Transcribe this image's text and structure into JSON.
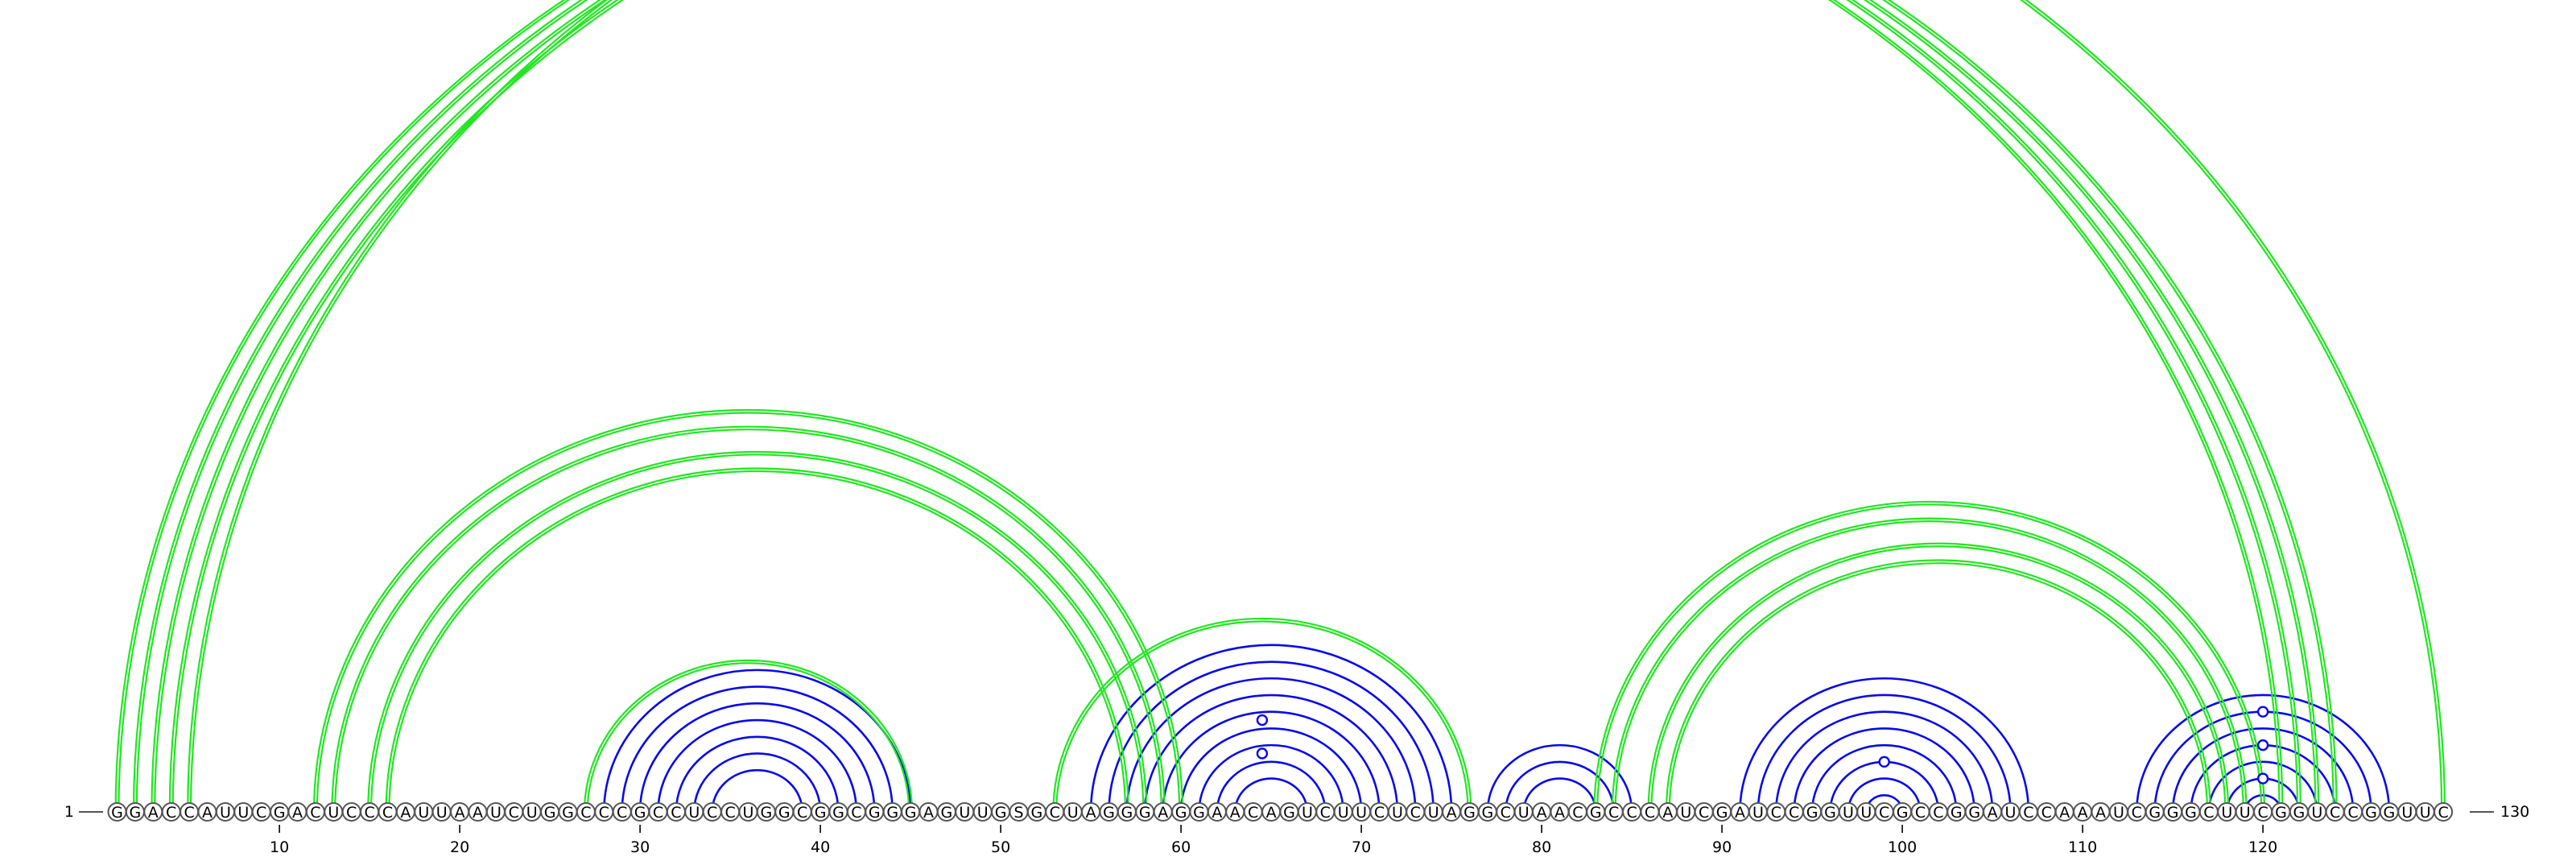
{
  "diagram": {
    "type": "rna-arc-diagram",
    "sequence": "GGACCAUUCGACUCCCAUUAAUCUGGCCCGCCUCCUGGCGGCGGGAGUUGSGCUAGGGAGGAACAGUCUUCUCUAGGCUAACGCCCAUCGAUCCGGUUCGCCGGAUCCAAAUCGGGCUUCGGUCCGGUUC",
    "start_label": "1",
    "end_label": "130",
    "tick_labels": [
      {
        "pos": 10,
        "label": "10"
      },
      {
        "pos": 20,
        "label": "20"
      },
      {
        "pos": 30,
        "label": "30"
      },
      {
        "pos": 40,
        "label": "40"
      },
      {
        "pos": 50,
        "label": "50"
      },
      {
        "pos": 60,
        "label": "60"
      },
      {
        "pos": 70,
        "label": "70"
      },
      {
        "pos": 80,
        "label": "80"
      },
      {
        "pos": 90,
        "label": "90"
      },
      {
        "pos": 100,
        "label": "100"
      },
      {
        "pos": 110,
        "label": "110"
      },
      {
        "pos": 120,
        "label": "120"
      }
    ],
    "colors": {
      "green": "#22e622",
      "blue": "#0a0ae6",
      "circle_stroke": "#555555"
    },
    "blue_pairs": [
      [
        28,
        45
      ],
      [
        29,
        44
      ],
      [
        30,
        43
      ],
      [
        31,
        42
      ],
      [
        32,
        41
      ],
      [
        33,
        40
      ],
      [
        34,
        39
      ],
      [
        55,
        75
      ],
      [
        56,
        74
      ],
      [
        57,
        73
      ],
      [
        58,
        72
      ],
      [
        59,
        71
      ],
      [
        60,
        70
      ],
      [
        61,
        69
      ],
      [
        62,
        68
      ],
      [
        63,
        67
      ],
      [
        77,
        85
      ],
      [
        78,
        84
      ],
      [
        79,
        83
      ],
      [
        91,
        107
      ],
      [
        92,
        106
      ],
      [
        93,
        105
      ],
      [
        94,
        104
      ],
      [
        95,
        103
      ],
      [
        96,
        102
      ],
      [
        97,
        101
      ],
      [
        98,
        100
      ],
      [
        113,
        127
      ],
      [
        114,
        126
      ],
      [
        115,
        125
      ],
      [
        116,
        124
      ],
      [
        117,
        123
      ],
      [
        118,
        122
      ],
      [
        119,
        121
      ]
    ],
    "green_pairs": [
      [
        1,
        121
      ],
      [
        2,
        122
      ],
      [
        3,
        123
      ],
      [
        4,
        124
      ],
      [
        5,
        130
      ],
      [
        12,
        60
      ],
      [
        13,
        59
      ],
      [
        15,
        58
      ],
      [
        16,
        57
      ],
      [
        27,
        45
      ],
      [
        53,
        76
      ],
      [
        83,
        120
      ],
      [
        84,
        119
      ],
      [
        86,
        118
      ],
      [
        87,
        117
      ]
    ],
    "markers": [
      {
        "i": 65,
        "j": 66,
        "color": "green"
      },
      {
        "i": 59,
        "j": 70,
        "color": "blue"
      },
      {
        "i": 61,
        "j": 68,
        "color": "blue"
      },
      {
        "i": 96,
        "j": 102,
        "color": "blue"
      },
      {
        "i": 114,
        "j": 126,
        "color": "blue"
      },
      {
        "i": 116,
        "j": 124,
        "color": "blue"
      },
      {
        "i": 118,
        "j": 122,
        "color": "blue"
      }
    ]
  }
}
